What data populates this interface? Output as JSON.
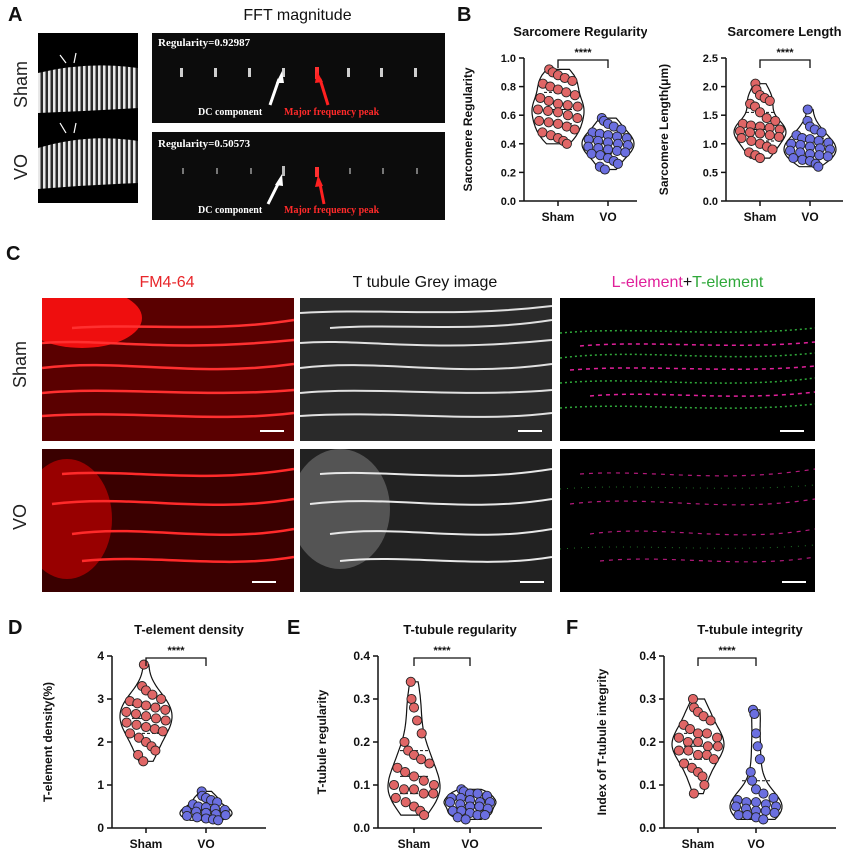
{
  "panel_a": {
    "letter": "A",
    "title": "FFT magnitude",
    "row_labels": [
      "Sham",
      "VO"
    ],
    "sham": {
      "regularity": "Regularity=0.92987",
      "dc": "DC component",
      "peak": "Major frequency peak"
    },
    "vo": {
      "regularity": "Regularity=0.50573",
      "dc": "DC component",
      "peak": "Major frequency peak"
    }
  },
  "panel_b": {
    "letter": "B"
  },
  "panel_c": {
    "letter": "C",
    "col_fm": "FM4-64",
    "col_grey": "T tubule Grey image",
    "col_l": "L-element",
    "col_plus": "+",
    "col_t": "T-element",
    "row_labels": [
      "Sham",
      "VO"
    ]
  },
  "panel_d": {
    "letter": "D"
  },
  "panel_e": {
    "letter": "E"
  },
  "panel_f": {
    "letter": "F"
  },
  "colors": {
    "sham": "#e06666",
    "vo": "#6b6fe0",
    "fm464": "#e8262a",
    "l_element": "#e0209a",
    "t_element": "#2fa83a"
  },
  "chart_data": [
    {
      "id": "b1",
      "type": "scatter",
      "title": "Sarcomere Regularity",
      "xlabel": "",
      "ylabel": "Sarcomere Regularity",
      "categories": [
        "Sham",
        "VO"
      ],
      "ylim": [
        0,
        1.0
      ],
      "yticks": [
        "0.0",
        "0.2",
        "0.4",
        "0.6",
        "0.8",
        "1.0"
      ],
      "significance": "****",
      "series": [
        {
          "name": "Sham",
          "values": [
            0.92,
            0.9,
            0.88,
            0.86,
            0.84,
            0.82,
            0.8,
            0.78,
            0.76,
            0.74,
            0.72,
            0.7,
            0.68,
            0.67,
            0.66,
            0.64,
            0.63,
            0.62,
            0.6,
            0.58,
            0.56,
            0.55,
            0.54,
            0.52,
            0.5,
            0.48,
            0.46,
            0.44,
            0.42,
            0.4
          ]
        },
        {
          "name": "VO",
          "values": [
            0.58,
            0.56,
            0.54,
            0.52,
            0.5,
            0.48,
            0.47,
            0.46,
            0.45,
            0.44,
            0.43,
            0.42,
            0.41,
            0.4,
            0.39,
            0.38,
            0.37,
            0.36,
            0.35,
            0.34,
            0.33,
            0.32,
            0.3,
            0.28,
            0.26,
            0.24,
            0.22
          ]
        }
      ]
    },
    {
      "id": "b2",
      "type": "scatter",
      "title": "Sarcomere Length",
      "xlabel": "",
      "ylabel": "Sarcomere Length(μm)",
      "categories": [
        "Sham",
        "VO"
      ],
      "ylim": [
        0,
        2.5
      ],
      "yticks": [
        "0.0",
        "0.5",
        "1.0",
        "1.5",
        "2.0",
        "2.5"
      ],
      "significance": "****",
      "series": [
        {
          "name": "Sham",
          "values": [
            2.05,
            1.95,
            1.85,
            1.8,
            1.75,
            1.7,
            1.65,
            1.55,
            1.45,
            1.4,
            1.35,
            1.32,
            1.3,
            1.28,
            1.25,
            1.22,
            1.2,
            1.18,
            1.15,
            1.12,
            1.1,
            1.05,
            1.0,
            0.95,
            0.9,
            0.85,
            0.8,
            0.75
          ]
        },
        {
          "name": "VO",
          "values": [
            1.6,
            1.4,
            1.3,
            1.25,
            1.2,
            1.15,
            1.1,
            1.08,
            1.05,
            1.02,
            1.0,
            0.98,
            0.95,
            0.92,
            0.9,
            0.88,
            0.85,
            0.82,
            0.8,
            0.78,
            0.75,
            0.72,
            0.7,
            0.65,
            0.6
          ]
        }
      ]
    },
    {
      "id": "d",
      "type": "scatter",
      "title": "T-element density",
      "xlabel": "",
      "ylabel": "T-element density(%)",
      "categories": [
        "Sham",
        "VO"
      ],
      "ylim": [
        0,
        4
      ],
      "yticks": [
        "0",
        "1",
        "2",
        "3",
        "4"
      ],
      "significance": "****",
      "series": [
        {
          "name": "Sham",
          "values": [
            3.8,
            3.3,
            3.2,
            3.1,
            3.0,
            2.95,
            2.9,
            2.85,
            2.8,
            2.75,
            2.7,
            2.65,
            2.6,
            2.55,
            2.5,
            2.45,
            2.4,
            2.35,
            2.3,
            2.25,
            2.2,
            2.1,
            2.0,
            1.9,
            1.8,
            1.7,
            1.55
          ]
        },
        {
          "name": "VO",
          "values": [
            0.85,
            0.75,
            0.7,
            0.65,
            0.6,
            0.55,
            0.5,
            0.48,
            0.45,
            0.42,
            0.4,
            0.38,
            0.35,
            0.32,
            0.3,
            0.28,
            0.25,
            0.22,
            0.2,
            0.18
          ]
        }
      ]
    },
    {
      "id": "e",
      "type": "scatter",
      "title": "T-tubule regularity",
      "xlabel": "",
      "ylabel": "T-tubule regularity",
      "categories": [
        "Sham",
        "VO"
      ],
      "ylim": [
        0,
        0.4
      ],
      "yticks": [
        "0.0",
        "0.1",
        "0.2",
        "0.3",
        "0.4"
      ],
      "significance": "****",
      "series": [
        {
          "name": "Sham",
          "values": [
            0.34,
            0.3,
            0.28,
            0.25,
            0.22,
            0.2,
            0.18,
            0.17,
            0.16,
            0.15,
            0.14,
            0.13,
            0.12,
            0.11,
            0.1,
            0.1,
            0.09,
            0.09,
            0.08,
            0.08,
            0.07,
            0.06,
            0.05,
            0.04,
            0.03
          ]
        },
        {
          "name": "VO",
          "values": [
            0.09,
            0.085,
            0.08,
            0.08,
            0.075,
            0.07,
            0.07,
            0.065,
            0.06,
            0.06,
            0.06,
            0.055,
            0.05,
            0.05,
            0.045,
            0.04,
            0.04,
            0.035,
            0.03,
            0.03,
            0.025,
            0.02
          ]
        }
      ]
    },
    {
      "id": "f",
      "type": "scatter",
      "title": "T-tubule integrity",
      "xlabel": "",
      "ylabel": "Index of T-tubule integrity",
      "categories": [
        "Sham",
        "VO"
      ],
      "ylim": [
        0,
        0.4
      ],
      "yticks": [
        "0.0",
        "0.1",
        "0.2",
        "0.3",
        "0.4"
      ],
      "significance": "****",
      "series": [
        {
          "name": "Sham",
          "values": [
            0.3,
            0.28,
            0.27,
            0.26,
            0.25,
            0.24,
            0.23,
            0.22,
            0.22,
            0.21,
            0.21,
            0.2,
            0.2,
            0.19,
            0.19,
            0.18,
            0.18,
            0.17,
            0.17,
            0.16,
            0.15,
            0.14,
            0.13,
            0.12,
            0.1,
            0.08
          ]
        },
        {
          "name": "VO",
          "values": [
            0.275,
            0.265,
            0.22,
            0.19,
            0.16,
            0.13,
            0.11,
            0.09,
            0.08,
            0.07,
            0.065,
            0.06,
            0.06,
            0.055,
            0.05,
            0.05,
            0.045,
            0.04,
            0.04,
            0.035,
            0.03,
            0.03,
            0.025,
            0.02
          ]
        }
      ]
    }
  ]
}
